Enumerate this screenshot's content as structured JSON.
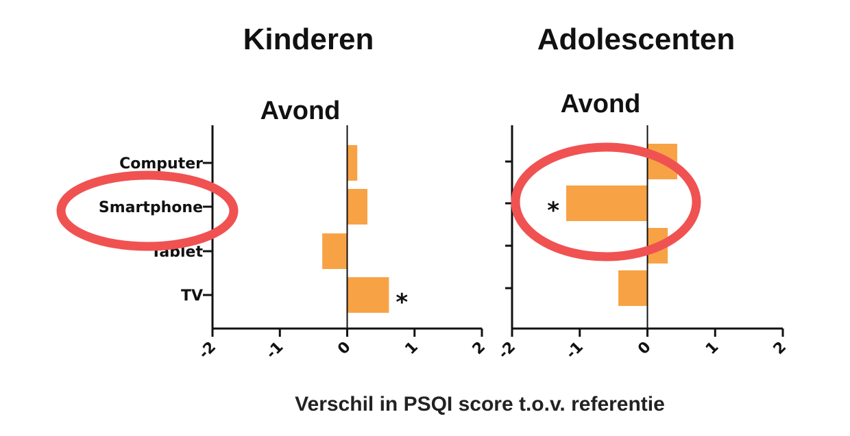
{
  "colors": {
    "bar": "#f7a345",
    "axis": "#111111",
    "highlight_ring": "#f05252"
  },
  "chart_data": [
    {
      "type": "bar",
      "orientation": "horizontal",
      "group_title": "Kinderen",
      "title": "Avond",
      "categories": [
        "Computer",
        "Smartphone",
        "Tablet",
        "TV"
      ],
      "values": [
        0.15,
        0.3,
        -0.37,
        0.62
      ],
      "significant": [
        false,
        false,
        false,
        true
      ],
      "significance_marker": "*",
      "xlim": [
        -2,
        2
      ],
      "xticks": [
        -2,
        -1,
        0,
        1,
        2
      ],
      "show_category_labels": true,
      "highlight": "Smartphone"
    },
    {
      "type": "bar",
      "orientation": "horizontal",
      "group_title": "Adolescenten",
      "title": "Avond",
      "categories": [
        "Computer",
        "Smartphone",
        "Tablet",
        "TV"
      ],
      "values": [
        0.44,
        -1.2,
        0.3,
        -0.43
      ],
      "significant": [
        false,
        true,
        false,
        false
      ],
      "significance_marker": "*",
      "xlim": [
        -2,
        2
      ],
      "xticks": [
        -2,
        -1,
        0,
        1,
        2
      ],
      "show_category_labels": false,
      "highlight": "Smartphone"
    }
  ],
  "xlabel": "Verschil in PSQI score t.o.v. referentie"
}
